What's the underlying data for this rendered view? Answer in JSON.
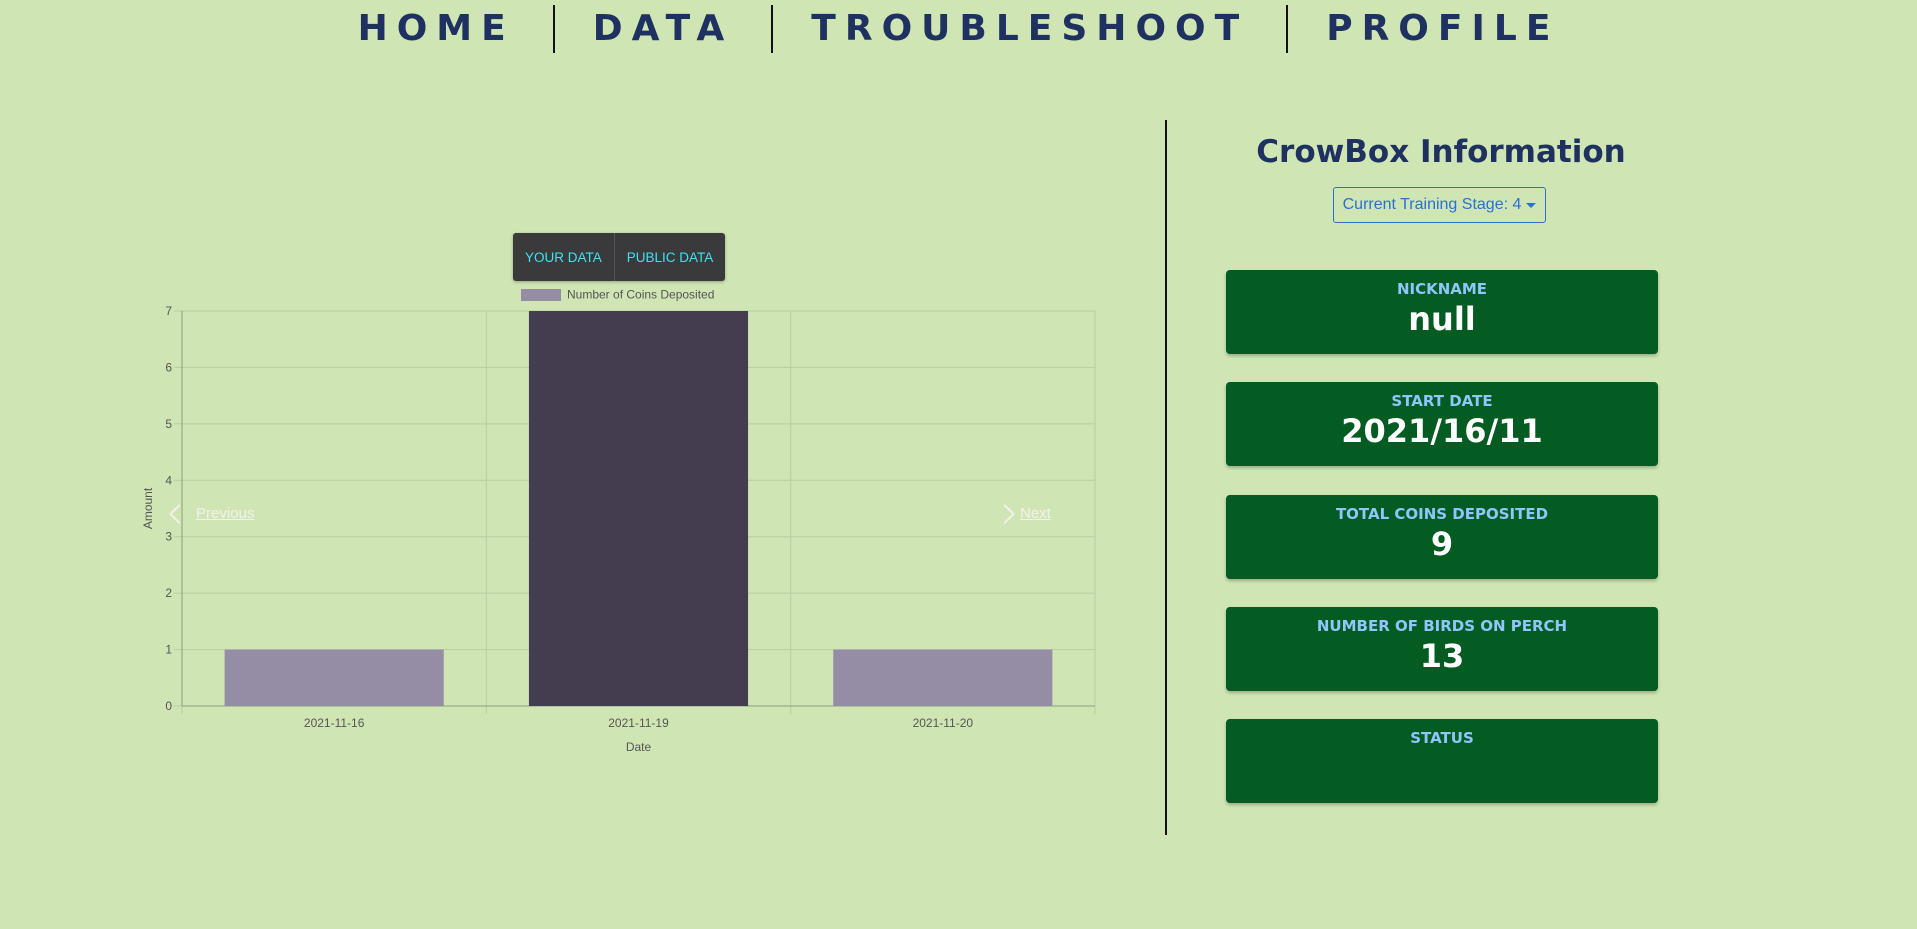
{
  "nav": {
    "items": [
      "HOME",
      "DATA",
      "TROUBLESHOOT",
      "PROFILE"
    ]
  },
  "data_toggle": {
    "your_data": "YOUR DATA",
    "public_data": "PUBLIC DATA"
  },
  "carousel": {
    "previous": "Previous",
    "next": "Next"
  },
  "chart_data": {
    "type": "bar",
    "categories": [
      "2021-11-16",
      "2021-11-19",
      "2021-11-20"
    ],
    "series": [
      {
        "name": "Number of Coins Deposited",
        "values": [
          1,
          7,
          1
        ]
      }
    ],
    "xlabel": "Date",
    "ylabel": "Amount",
    "ylim": [
      0,
      7
    ],
    "yticks": [
      0,
      1,
      2,
      3,
      4,
      5,
      6,
      7
    ],
    "grid": true,
    "legend": "top-center",
    "colors": {
      "bar": "#958ca6",
      "bar_hover": "#433d4f",
      "grid": "#b6cda0"
    }
  },
  "info": {
    "title": "CrowBox Information",
    "stage_dropdown": "Current Training Stage: 4",
    "cards": [
      {
        "label": "NICKNAME",
        "value": "null"
      },
      {
        "label": "START DATE",
        "value": "2021/16/11"
      },
      {
        "label": "TOTAL COINS DEPOSITED",
        "value": "9"
      },
      {
        "label": "NUMBER OF BIRDS ON PERCH",
        "value": "13"
      },
      {
        "label": "STATUS",
        "value": ""
      }
    ]
  }
}
